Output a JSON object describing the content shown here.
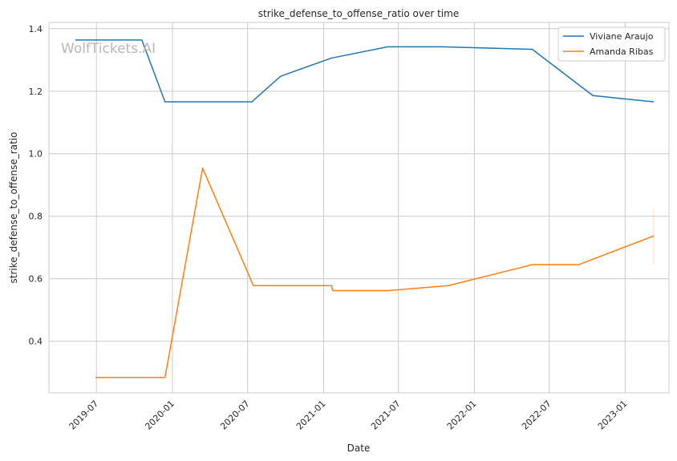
{
  "chart_data": {
    "type": "line",
    "title": "strike_defense_to_offense_ratio over time",
    "xlabel": "Date",
    "ylabel": "strike_defense_to_offense_ratio",
    "watermark": "WolfTickets.AI",
    "x_ticks": [
      "2019-07",
      "2020-01",
      "2020-07",
      "2021-01",
      "2021-07",
      "2022-01",
      "2022-07",
      "2023-01"
    ],
    "y_ticks": [
      "0.4",
      "0.6",
      "0.8",
      "1.0",
      "1.2",
      "1.4"
    ],
    "xlim": [
      "2019-03-08",
      "2023-04-17"
    ],
    "ylim": [
      0.235,
      1.42
    ],
    "grid": true,
    "legend_position": "top-right",
    "series": [
      {
        "name": "Viviane Araujo",
        "color": "#1f77b4",
        "points": [
          {
            "x": "2019-05-11",
            "y": 1.364
          },
          {
            "x": "2019-10-19",
            "y": 1.364
          },
          {
            "x": "2019-12-14",
            "y": 1.166
          },
          {
            "x": "2020-07-11",
            "y": 1.166
          },
          {
            "x": "2020-09-19",
            "y": 1.248
          },
          {
            "x": "2021-01-20",
            "y": 1.306
          },
          {
            "x": "2021-06-05",
            "y": 1.342
          },
          {
            "x": "2021-10-16",
            "y": 1.342
          },
          {
            "x": "2022-05-21",
            "y": 1.334
          },
          {
            "x": "2022-10-15",
            "y": 1.186
          },
          {
            "x": "2023-03-11",
            "y": 1.166
          }
        ]
      },
      {
        "name": "Amanda Ribas",
        "color": "#ff7f0e",
        "points": [
          {
            "x": "2019-06-29",
            "y": 0.284
          },
          {
            "x": "2019-12-14",
            "y": 0.284
          },
          {
            "x": "2020-03-14",
            "y": 0.954
          },
          {
            "x": "2020-07-15",
            "y": 0.578
          },
          {
            "x": "2021-01-20",
            "y": 0.578
          },
          {
            "x": "2021-01-23",
            "y": 0.562
          },
          {
            "x": "2021-06-05",
            "y": 0.562
          },
          {
            "x": "2021-10-30",
            "y": 0.578
          },
          {
            "x": "2022-05-21",
            "y": 0.645
          },
          {
            "x": "2022-09-10",
            "y": 0.645
          },
          {
            "x": "2023-03-11",
            "y": 0.737
          }
        ],
        "error_band": {
          "x": "2023-03-11",
          "low": 0.645,
          "high": 0.826
        }
      }
    ]
  }
}
